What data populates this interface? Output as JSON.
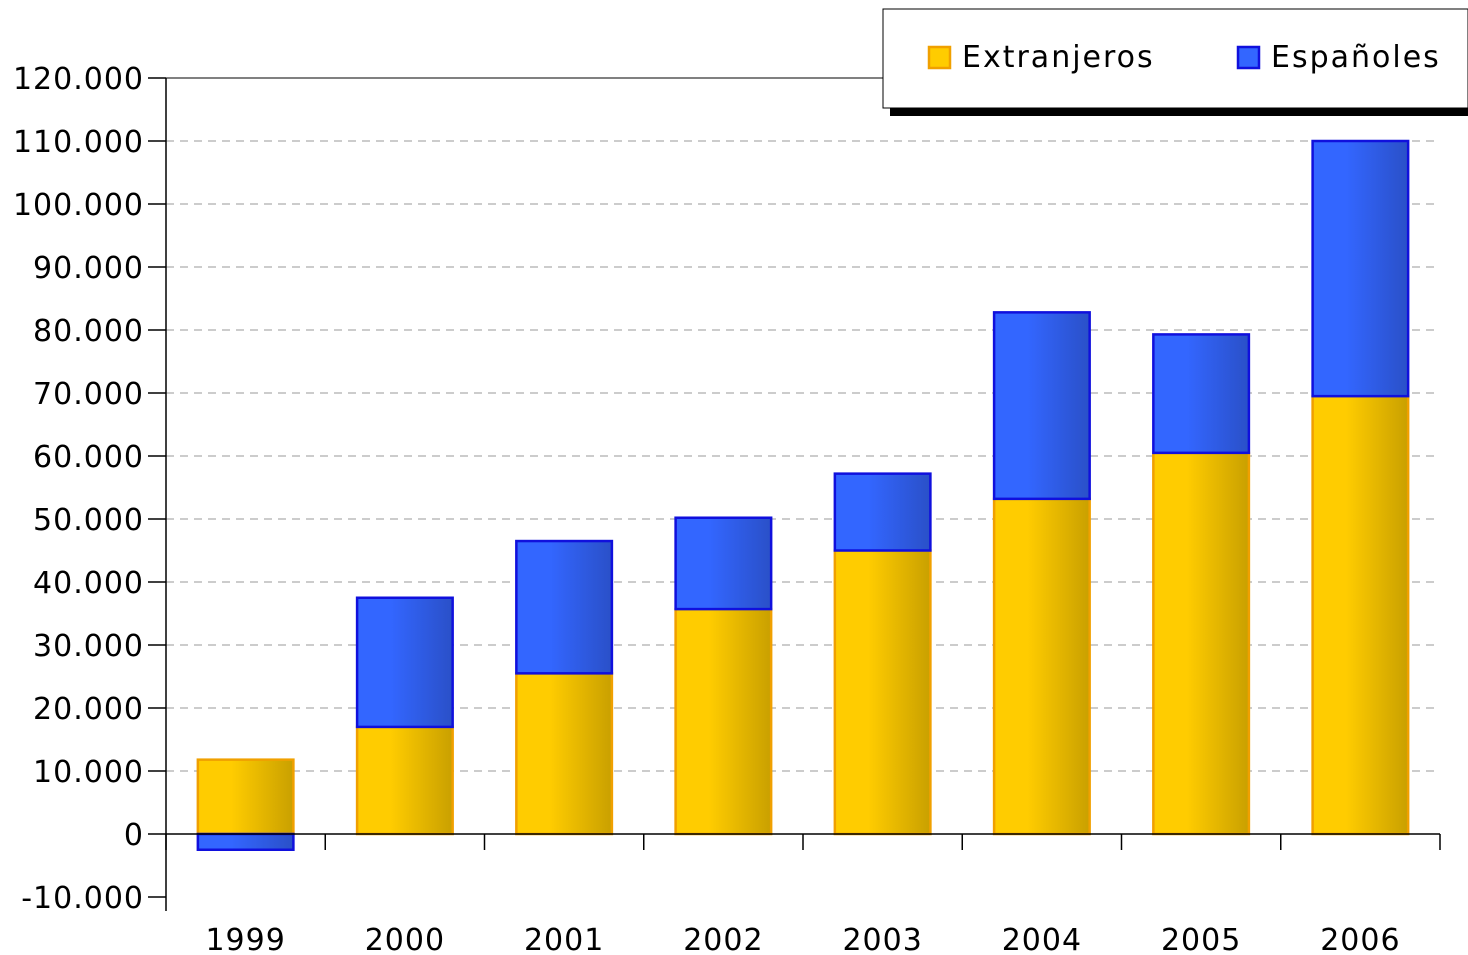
{
  "chart_data": {
    "type": "bar",
    "stacked": true,
    "categories": [
      "1999",
      "2000",
      "2001",
      "2002",
      "2003",
      "2004",
      "2005",
      "2006"
    ],
    "series": [
      {
        "name": "Extranjeros",
        "values": [
          11800,
          17000,
          25500,
          35700,
          45000,
          53200,
          60500,
          69500
        ]
      },
      {
        "name": "Españoles",
        "values": [
          -2500,
          20500,
          21000,
          14500,
          12200,
          29600,
          18800,
          40500
        ]
      }
    ],
    "ylim": [
      -10000,
      120000
    ],
    "yticks": [
      -10000,
      0,
      10000,
      20000,
      30000,
      40000,
      50000,
      60000,
      70000,
      80000,
      90000,
      100000,
      110000,
      120000
    ],
    "ytick_labels": [
      "-10.000",
      "0",
      "10.000",
      "20.000",
      "30.000",
      "40.000",
      "50.000",
      "60.000",
      "70.000",
      "80.000",
      "90.000",
      "100.000",
      "110.000",
      "120.000"
    ],
    "grid": true,
    "legend_position": "top-right",
    "title": "",
    "xlabel": "",
    "ylabel": "",
    "colors": {
      "Extranjeros": "#FFCC00",
      "Extranjeros_edge": "#F0A000",
      "Españoles": "#3366FF",
      "Españoles_edge": "#1010DD"
    }
  }
}
